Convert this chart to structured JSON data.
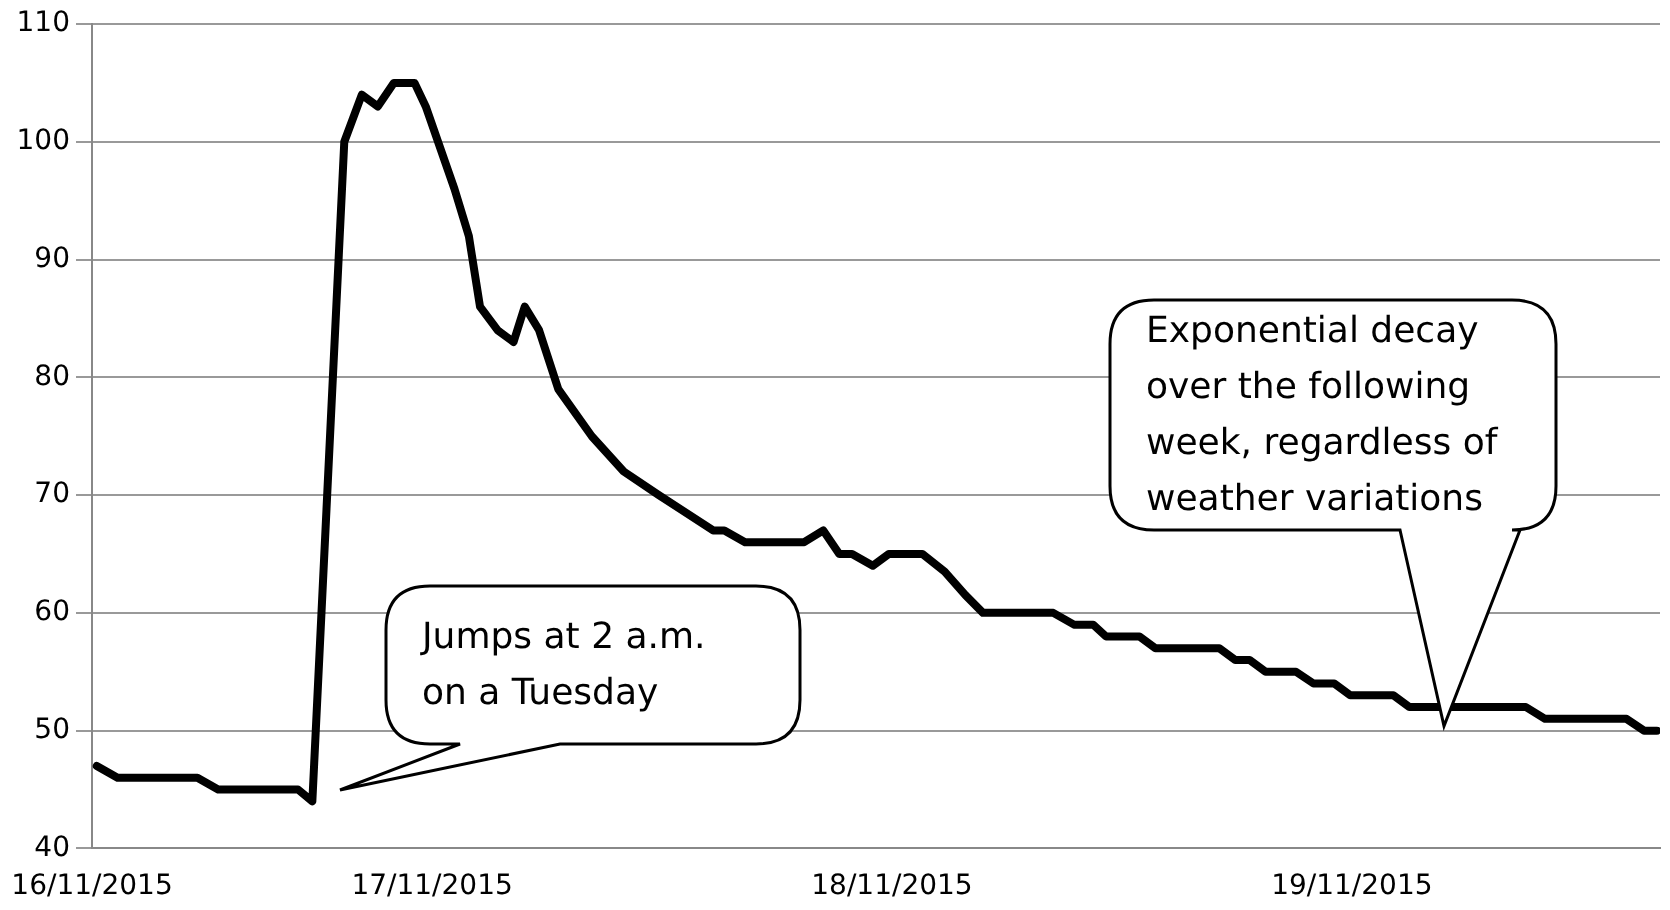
{
  "chart_data": {
    "type": "line",
    "color": "#000000",
    "marker": "none",
    "line_style": "solid",
    "grid": "y",
    "legend": false,
    "x": [
      "2015-11-16T06:30",
      "2015-11-16T07:35",
      "2015-11-16T11:45",
      "2015-11-16T12:50",
      "2015-11-16T17:00",
      "2015-11-16T17:45",
      "2015-11-16T19:25",
      "2015-11-16T20:20",
      "2015-11-16T21:10",
      "2015-11-16T22:00",
      "2015-11-16T23:05",
      "2015-11-16T23:40",
      "2015-11-17T01:10",
      "2015-11-17T01:55",
      "2015-11-17T02:30",
      "2015-11-17T03:25",
      "2015-11-17T04:15",
      "2015-11-17T04:50",
      "2015-11-17T05:35",
      "2015-11-17T06:35",
      "2015-11-17T08:20",
      "2015-11-17T10:00",
      "2015-11-17T11:50",
      "2015-11-17T14:40",
      "2015-11-17T15:15",
      "2015-11-17T16:20",
      "2015-11-17T19:25",
      "2015-11-17T20:25",
      "2015-11-17T21:15",
      "2015-11-17T21:55",
      "2015-11-17T23:00",
      "2015-11-17T23:50",
      "2015-11-18T01:35",
      "2015-11-18T02:45",
      "2015-11-18T03:50",
      "2015-11-18T04:45",
      "2015-11-18T08:25",
      "2015-11-18T09:30",
      "2015-11-18T10:30",
      "2015-11-18T11:10",
      "2015-11-18T12:55",
      "2015-11-18T13:45",
      "2015-11-18T17:05",
      "2015-11-18T17:55",
      "2015-11-18T18:40",
      "2015-11-18T19:30",
      "2015-11-18T21:05",
      "2015-11-18T22:00",
      "2015-11-18T23:05",
      "2015-11-18T23:55",
      "2015-11-19T02:10",
      "2015-11-19T03:00",
      "2015-11-19T09:05",
      "2015-11-19T10:05",
      "2015-11-19T14:20",
      "2015-11-19T15:15",
      "2015-11-19T15:55"
    ],
    "values": [
      47,
      46,
      46,
      45,
      45,
      44,
      100,
      104,
      103,
      105,
      105,
      103,
      96,
      92,
      86,
      84,
      83,
      86,
      84,
      79,
      75,
      72,
      70,
      67,
      67,
      66,
      66,
      67,
      65,
      65,
      64,
      65,
      65,
      63.5,
      61.5,
      60,
      60,
      59,
      59,
      58,
      58,
      57,
      57,
      56,
      56,
      55,
      55,
      54,
      54,
      53,
      53,
      52,
      52,
      51,
      51,
      50,
      50
    ],
    "xlim": [
      "2015-11-16T06:15",
      "2015-11-19T16:05"
    ],
    "xticks": [
      {
        "value": "2015-11-16T06:15",
        "label": "16/11/2015"
      },
      {
        "value": "2015-11-17",
        "label": "17/11/2015"
      },
      {
        "value": "2015-11-18",
        "label": "18/11/2015"
      },
      {
        "value": "2015-11-19",
        "label": "19/11/2015"
      }
    ],
    "ylim": [
      40,
      110
    ],
    "yticks": [
      40,
      50,
      60,
      70,
      80,
      90,
      100,
      110
    ],
    "annotations": [
      "Jumps at 2 a.m. on a Tuesday",
      "Exponential decay over the following week, regardless of weather variations"
    ]
  }
}
